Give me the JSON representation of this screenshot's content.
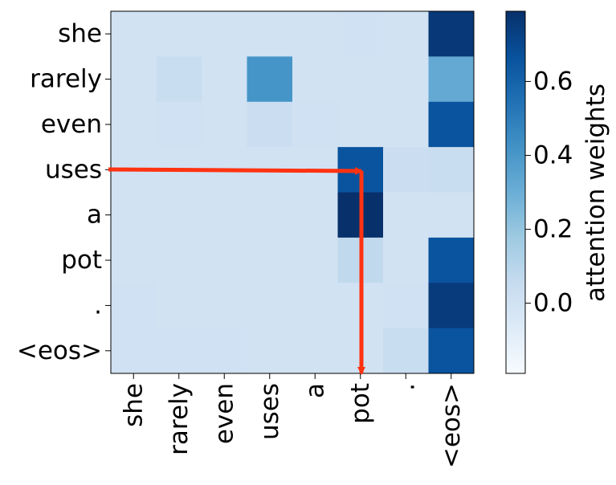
{
  "chart_data": {
    "type": "heatmap",
    "title": "",
    "x_categories": [
      "she",
      "rarely",
      "even",
      "uses",
      "a",
      "pot",
      ".",
      "<eos>"
    ],
    "y_categories": [
      "she",
      "rarely",
      "even",
      "uses",
      "a",
      "pot",
      ".",
      "<eos>"
    ],
    "values": [
      [
        0.0,
        0.0,
        0.0,
        0.0,
        0.0,
        0.01,
        0.0,
        0.76
      ],
      [
        0.0,
        0.04,
        0.0,
        0.41,
        0.0,
        0.0,
        0.0,
        0.32
      ],
      [
        0.0,
        0.01,
        0.0,
        0.03,
        0.01,
        0.0,
        0.0,
        0.66
      ],
      [
        0.0,
        0.0,
        0.0,
        0.0,
        0.0,
        0.66,
        0.03,
        0.04
      ],
      [
        0.0,
        0.0,
        0.0,
        0.0,
        0.0,
        0.79,
        0.0,
        0.0
      ],
      [
        0.0,
        0.0,
        0.0,
        0.0,
        0.0,
        0.07,
        0.0,
        0.66
      ],
      [
        0.01,
        0.0,
        0.0,
        0.0,
        0.0,
        0.0,
        0.01,
        0.75
      ],
      [
        0.01,
        0.01,
        0.01,
        0.0,
        0.0,
        0.0,
        0.04,
        0.66
      ]
    ],
    "colorbar": {
      "label": "attention weights",
      "ticks": [
        "0.0",
        "0.2",
        "0.4",
        "0.6"
      ],
      "tick_values": [
        0.0,
        0.2,
        0.4,
        0.6
      ],
      "range": [
        -0.19,
        0.79
      ],
      "colormap": "Blues"
    },
    "annotations": [
      {
        "type": "arrow",
        "from": [
          "left-edge",
          "uses"
        ],
        "to": [
          "pot",
          "uses"
        ],
        "color": "#ff3311"
      },
      {
        "type": "arrow",
        "from": [
          "pot",
          "uses"
        ],
        "to": [
          "pot",
          "below-axis"
        ],
        "color": "#ff3311"
      }
    ]
  }
}
